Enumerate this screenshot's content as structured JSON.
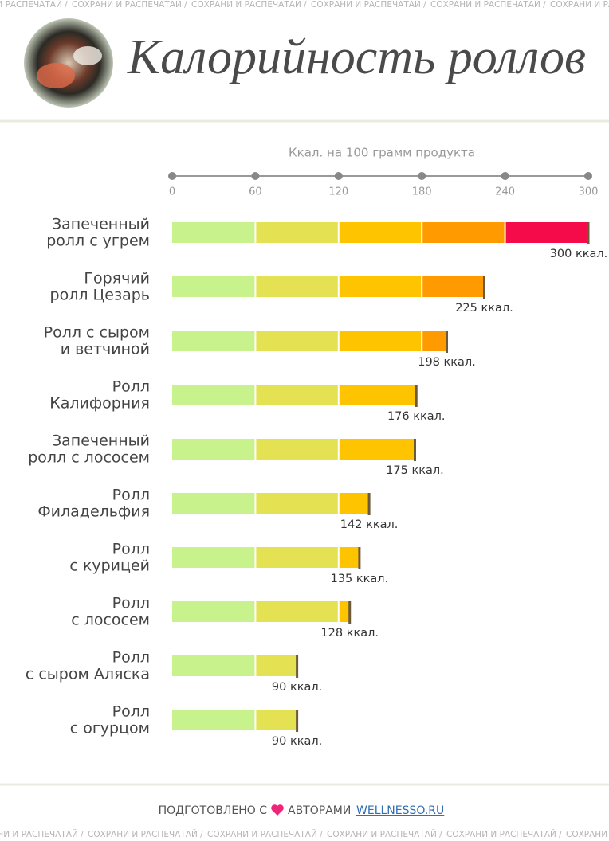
{
  "watermark": "СОХРАНИ И РАСПЕЧАТАЙ /",
  "chart_data": {
    "type": "bar",
    "orientation": "horizontal",
    "title": "Калорийность роллов",
    "x_label": "Ккал. на 100 грамм продукта",
    "xlim": [
      0,
      300
    ],
    "xticks": [
      0,
      60,
      120,
      180,
      240,
      300
    ],
    "band_colors": [
      "#c8f28c",
      "#e4e152",
      "#ffc400",
      "#ff9b00",
      "#f50a4a"
    ],
    "categories": [
      [
        "Запеченный",
        "ролл с угрем"
      ],
      [
        "Горячий",
        "ролл Цезарь"
      ],
      [
        "Ролл с сыром",
        "и ветчиной"
      ],
      [
        "Ролл",
        "Калифорния"
      ],
      [
        "Запеченный",
        "ролл с лососем"
      ],
      [
        "Ролл",
        "Филадельфия"
      ],
      [
        "Ролл",
        "с курицей"
      ],
      [
        "Ролл",
        "с лососем"
      ],
      [
        "Ролл",
        "с сыром Аляска"
      ],
      [
        "Ролл",
        "с огурцом"
      ]
    ],
    "values": [
      300,
      225,
      198,
      176,
      175,
      142,
      135,
      128,
      90,
      90
    ],
    "value_labels": [
      "300 ккал.",
      "225 ккал.",
      "198 ккал.",
      "176 ккал.",
      "175 ккал.",
      "142 ккал.",
      "135 ккал.",
      "128 ккал.",
      "90 ккал.",
      "90 ккал."
    ]
  },
  "footer": {
    "prefix": "ПОДГОТОВЛЕНО С",
    "middle": "АВТОРАМИ",
    "link": "WELLNESSO.RU"
  }
}
